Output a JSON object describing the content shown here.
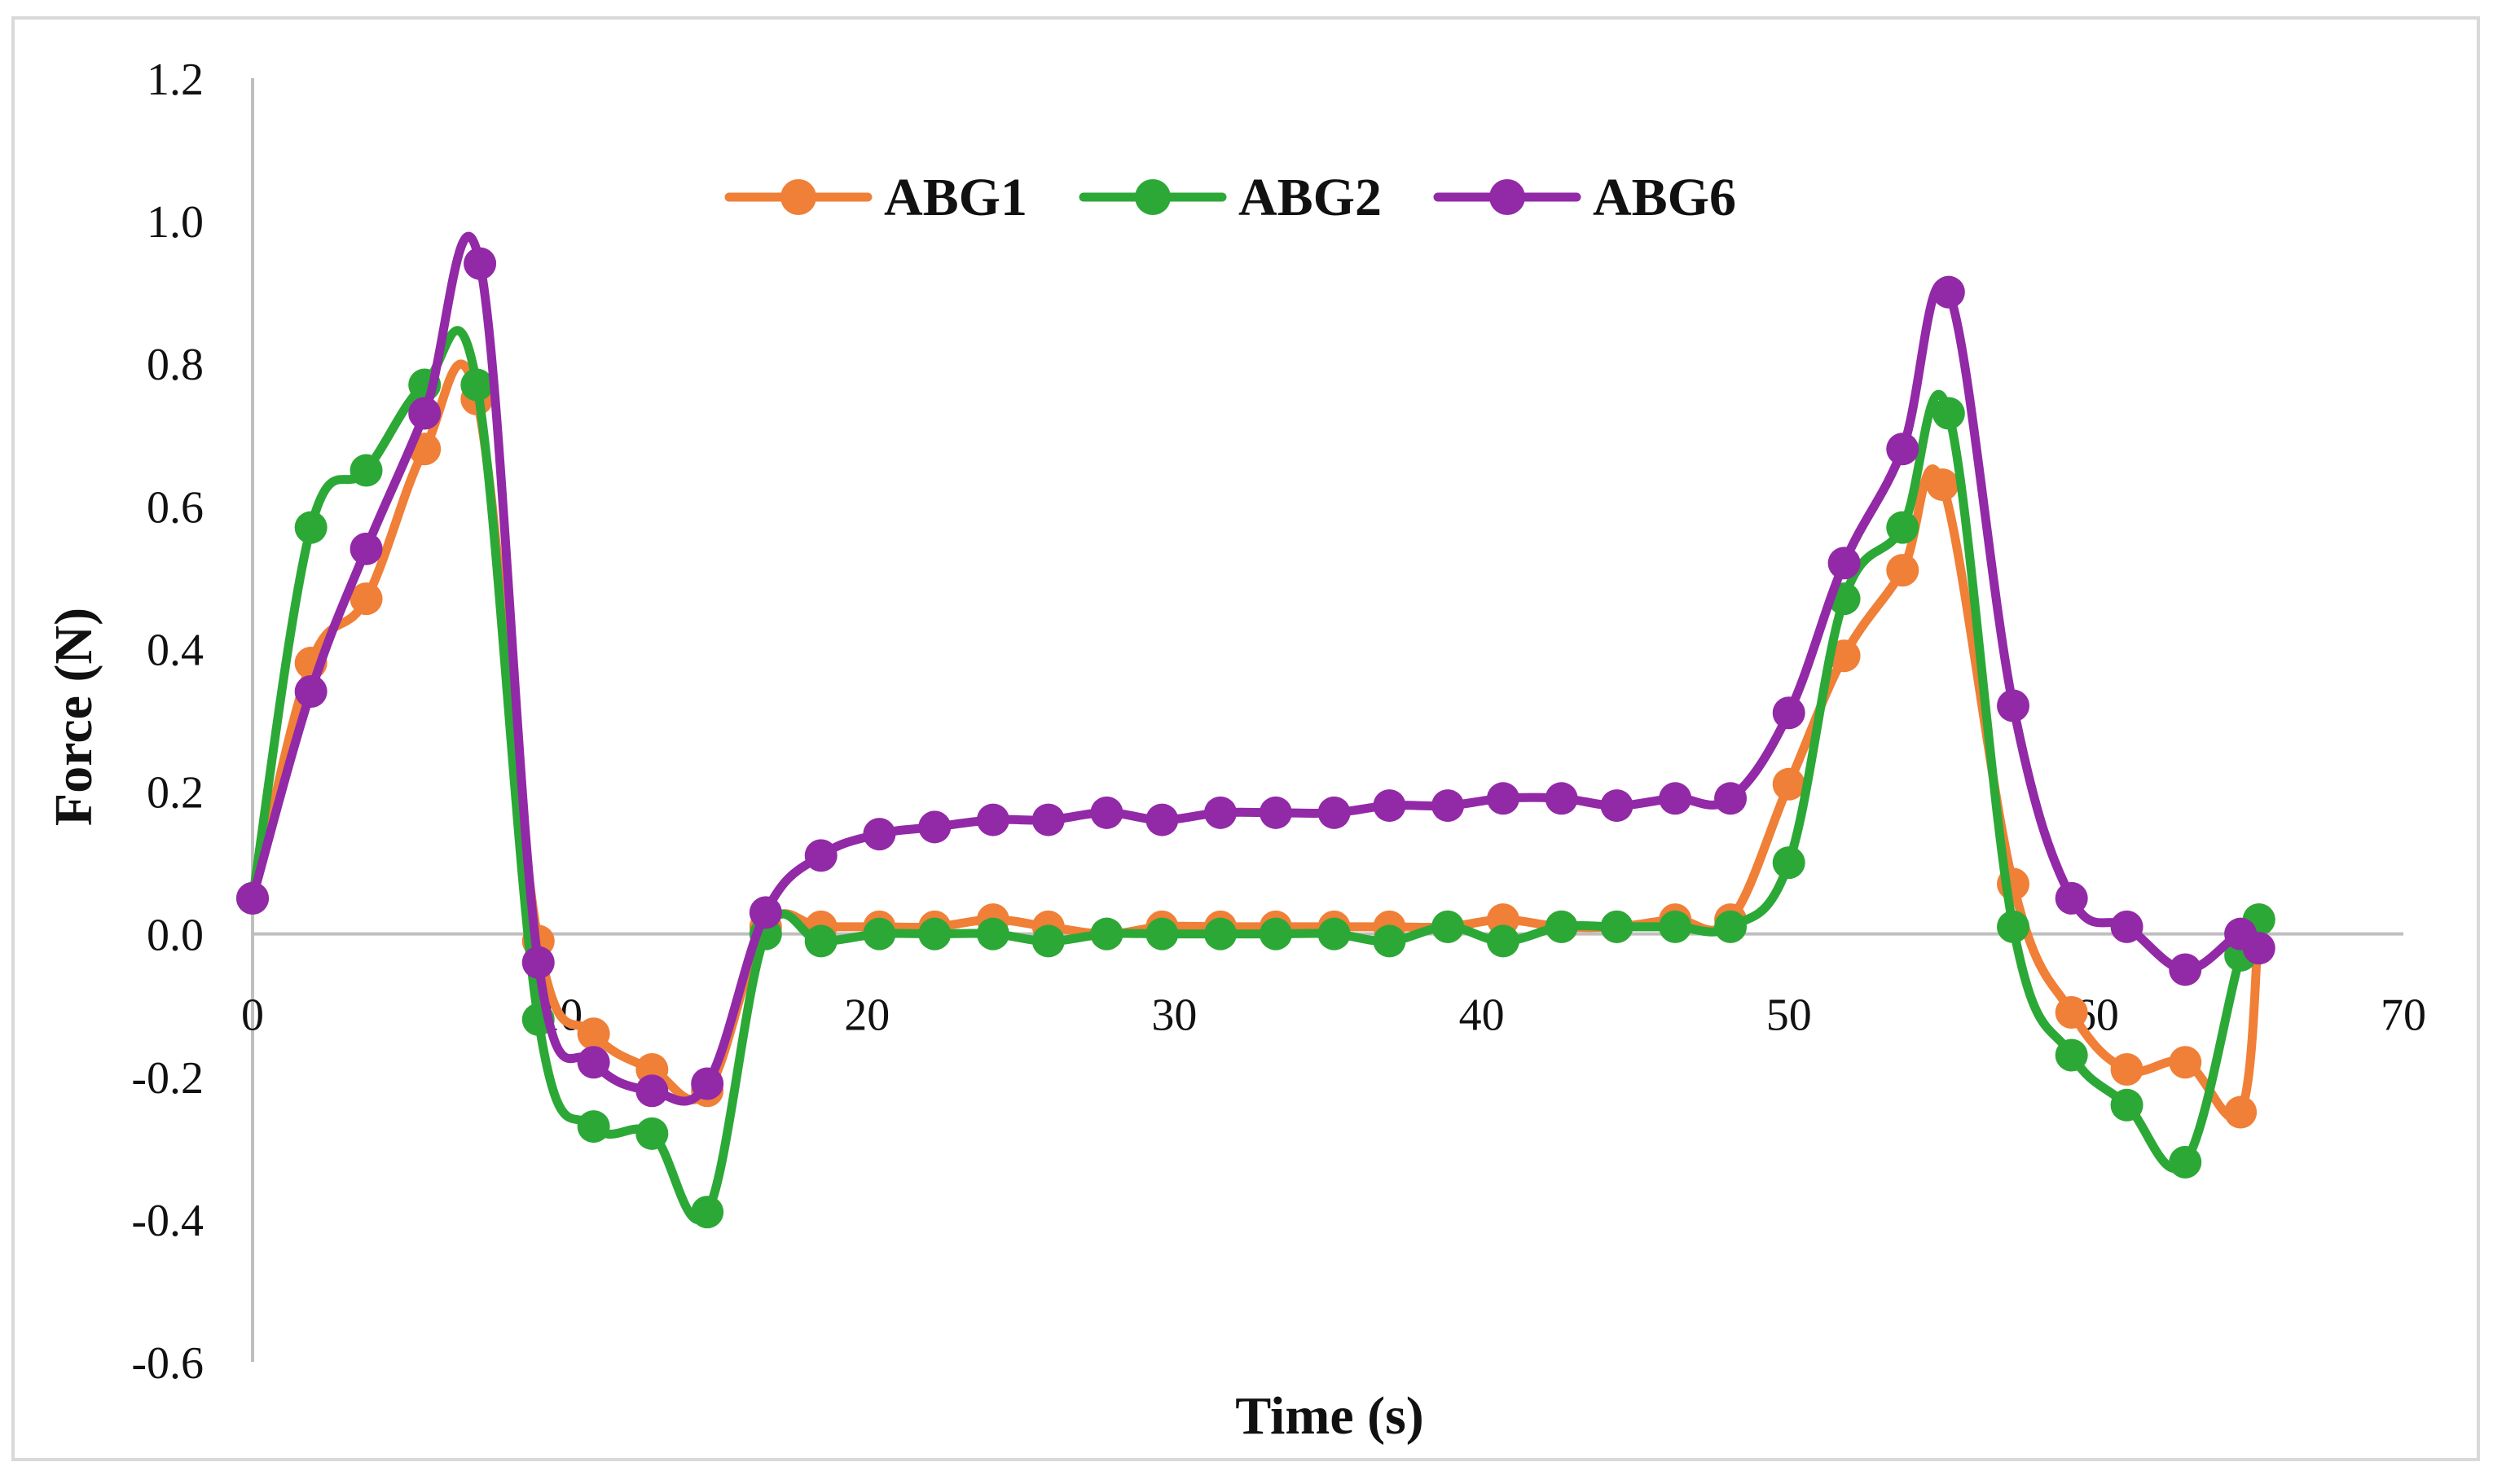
{
  "chart_data": {
    "type": "line",
    "title": "",
    "xlabel": "Time (s)",
    "ylabel": "Force (N)",
    "xlim": [
      0,
      70
    ],
    "ylim": [
      -0.6,
      1.2
    ],
    "xticks": [
      "0",
      "10",
      "20",
      "30",
      "40",
      "50",
      "60",
      "70"
    ],
    "yticks": [
      "-0.6",
      "-0.4",
      "-0.2",
      "0.0",
      "0.2",
      "0.4",
      "0.6",
      "0.8",
      "1.0",
      "1.2"
    ],
    "legend_position": "top-center",
    "series": [
      {
        "name": "ABG1",
        "color": "#F07F37",
        "x": [
          0,
          1.9,
          3.7,
          5.6,
          7.3,
          9.3,
          11.1,
          13.0,
          14.8,
          16.7,
          18.5,
          20.4,
          22.2,
          24.1,
          25.9,
          27.8,
          29.6,
          31.5,
          33.3,
          35.2,
          37.0,
          38.9,
          40.7,
          42.6,
          44.4,
          46.3,
          48.1,
          50.0,
          51.8,
          53.7,
          55.0,
          57.3,
          59.2,
          61.0,
          62.9,
          64.7,
          65.3
        ],
        "values": [
          0.05,
          0.38,
          0.47,
          0.68,
          0.75,
          -0.01,
          -0.14,
          -0.19,
          -0.22,
          0.01,
          0.01,
          0.01,
          0.01,
          0.02,
          0.01,
          0.0,
          0.01,
          0.01,
          0.01,
          0.01,
          0.01,
          0.01,
          0.02,
          0.01,
          0.01,
          0.02,
          0.02,
          0.21,
          0.39,
          0.51,
          0.63,
          0.07,
          -0.11,
          -0.19,
          -0.18,
          -0.25,
          0.02
        ]
      },
      {
        "name": "ABG2",
        "color": "#2CA837",
        "x": [
          0,
          1.9,
          3.7,
          5.6,
          7.3,
          9.3,
          11.1,
          13.0,
          14.8,
          16.7,
          18.5,
          20.4,
          22.2,
          24.1,
          25.9,
          27.8,
          29.6,
          31.5,
          33.3,
          35.2,
          37.0,
          38.9,
          40.7,
          42.6,
          44.4,
          46.3,
          48.1,
          50.0,
          51.8,
          53.7,
          55.2,
          57.3,
          59.2,
          61.0,
          62.9,
          64.7,
          65.3
        ],
        "values": [
          0.05,
          0.57,
          0.65,
          0.77,
          0.77,
          -0.12,
          -0.27,
          -0.28,
          -0.39,
          0.0,
          -0.01,
          0.0,
          0.0,
          0.0,
          -0.01,
          0.0,
          0.0,
          0.0,
          0.0,
          0.0,
          -0.01,
          0.01,
          -0.01,
          0.01,
          0.01,
          0.01,
          0.01,
          0.1,
          0.47,
          0.57,
          0.73,
          0.01,
          -0.17,
          -0.24,
          -0.32,
          -0.03,
          0.02
        ]
      },
      {
        "name": "ABG6",
        "color": "#9229A7",
        "x": [
          0,
          1.9,
          3.7,
          5.6,
          7.4,
          9.3,
          11.1,
          13.0,
          14.8,
          16.7,
          18.5,
          20.4,
          22.2,
          24.1,
          25.9,
          27.8,
          29.6,
          31.5,
          33.3,
          35.2,
          37.0,
          38.9,
          40.7,
          42.6,
          44.4,
          46.3,
          48.1,
          50.0,
          51.8,
          53.7,
          55.2,
          57.3,
          59.2,
          61.0,
          62.9,
          64.7,
          65.3
        ],
        "values": [
          0.05,
          0.34,
          0.54,
          0.73,
          0.94,
          -0.04,
          -0.18,
          -0.22,
          -0.21,
          0.03,
          0.11,
          0.14,
          0.15,
          0.16,
          0.16,
          0.17,
          0.16,
          0.17,
          0.17,
          0.17,
          0.18,
          0.18,
          0.19,
          0.19,
          0.18,
          0.19,
          0.19,
          0.31,
          0.52,
          0.68,
          0.9,
          0.32,
          0.05,
          0.01,
          -0.05,
          0.0,
          -0.02
        ]
      }
    ]
  }
}
